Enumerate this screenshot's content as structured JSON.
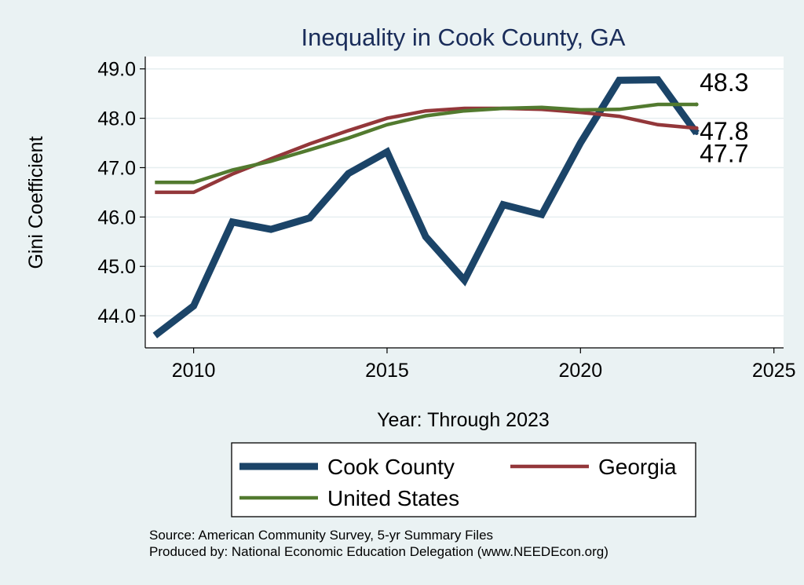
{
  "chart_data": {
    "type": "line",
    "title": "Inequality in Cook County, GA",
    "xlabel": "Year: Through 2023",
    "ylabel": "Gini Coefficient",
    "xlim": [
      2008.75,
      2025.25
    ],
    "ylim": [
      43.35,
      49.25
    ],
    "x_ticks": [
      2010,
      2015,
      2020,
      2025
    ],
    "y_ticks": [
      44,
      45,
      46,
      47,
      48,
      49
    ],
    "y_tick_labels": [
      "44.0",
      "45.0",
      "46.0",
      "47.0",
      "48.0",
      "49.0"
    ],
    "grid": true,
    "legend_position": "bottom",
    "series": [
      {
        "name": "Cook County",
        "color": "#1b4468",
        "x": [
          2009,
          2010,
          2011,
          2012,
          2013,
          2014,
          2015,
          2016,
          2017,
          2018,
          2019,
          2020,
          2021,
          2022,
          2023
        ],
        "values": [
          43.6,
          44.2,
          45.9,
          45.75,
          45.98,
          46.88,
          47.32,
          45.6,
          44.72,
          46.25,
          46.05,
          47.5,
          48.77,
          48.78,
          47.7
        ],
        "end_label": "47.7"
      },
      {
        "name": "Georgia",
        "color": "#93373a",
        "x": [
          2009,
          2010,
          2011,
          2012,
          2013,
          2014,
          2015,
          2016,
          2017,
          2018,
          2019,
          2020,
          2021,
          2022,
          2023
        ],
        "values": [
          46.5,
          46.5,
          46.87,
          47.18,
          47.48,
          47.75,
          48.0,
          48.15,
          48.2,
          48.2,
          48.18,
          48.12,
          48.04,
          47.87,
          47.8
        ],
        "end_label": "47.8"
      },
      {
        "name": "United States",
        "color": "#527a2f",
        "x": [
          2009,
          2010,
          2011,
          2012,
          2013,
          2014,
          2015,
          2016,
          2017,
          2018,
          2019,
          2020,
          2021,
          2022,
          2023
        ],
        "values": [
          46.7,
          46.7,
          46.95,
          47.13,
          47.36,
          47.6,
          47.87,
          48.05,
          48.15,
          48.2,
          48.22,
          48.17,
          48.18,
          48.28,
          48.28
        ],
        "end_label": "48.3"
      }
    ],
    "legend_order": [
      "Cook County",
      "Georgia",
      "United States"
    ]
  },
  "footer": {
    "source_line": "Source: American Community Survey, 5-yr Summary Files",
    "produced_line": "Produced by: National Economic Education Delegation (www.NEEDEcon.org)"
  },
  "colors": {
    "background": "#eaf2f3",
    "plot_background": "#ffffff",
    "gridline": "#e6eef0",
    "title": "#1a2d5a"
  }
}
